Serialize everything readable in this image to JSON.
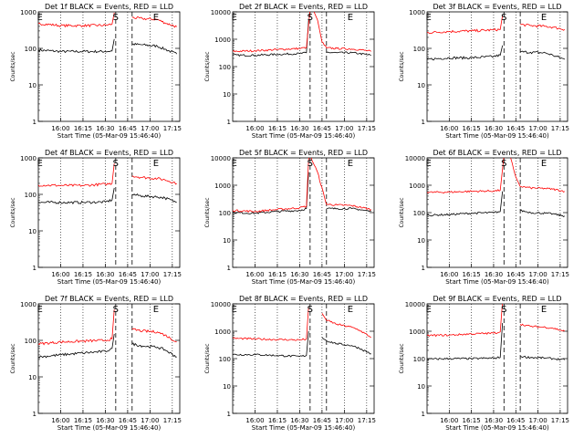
{
  "figure": {
    "start_time_label": "Start Time (05-Mar-09 15:46:40)",
    "ylabel": "Counts/sec",
    "x_ticks": [
      "16:00",
      "16:15",
      "16:30",
      "16:45",
      "17:00",
      "17:15"
    ],
    "x_tick_minutes": [
      -75,
      -60,
      -45,
      -30,
      -15,
      0
    ],
    "markers": [
      {
        "label": "E",
        "x": -89
      },
      {
        "label": "S",
        "x": -38
      },
      {
        "label": "E",
        "x": -11
      }
    ],
    "dashed_lines": [
      -38,
      -27
    ],
    "colors": {
      "events": "#000000",
      "lld": "#ff0000",
      "axes": "#000000"
    }
  },
  "chart_data": [
    {
      "type": "line",
      "title": "Det 1f BLACK = Events, RED = LLD",
      "y_scale": "log",
      "ylim": [
        1,
        1000
      ],
      "y_ticks": [
        "1",
        "10",
        "100",
        "1000"
      ],
      "xlim": [
        -90,
        5
      ],
      "series": [
        {
          "name": "Events",
          "color": "#000000",
          "x": [
            -90,
            -75,
            -60,
            -45,
            -40.5,
            -39,
            -38,
            -27,
            -20,
            -10,
            -5,
            3
          ],
          "y": [
            90,
            82,
            82,
            82,
            85,
            180,
            null,
            130,
            125,
            115,
            95,
            70
          ]
        },
        {
          "name": "LLD",
          "color": "#ff0000",
          "x": [
            -90,
            -75,
            -60,
            -45,
            -40.5,
            -39,
            -38,
            -27,
            -20,
            -10,
            -5,
            3
          ],
          "y": [
            480,
            420,
            420,
            430,
            460,
            950,
            null,
            700,
            650,
            620,
            500,
            390
          ]
        }
      ]
    },
    {
      "type": "line",
      "title": "Det 2f BLACK = Events, RED = LLD",
      "y_scale": "log",
      "ylim": [
        1,
        10000
      ],
      "y_ticks": [
        "1",
        "10",
        "100",
        "1000",
        "10000"
      ],
      "xlim": [
        -90,
        5
      ],
      "series": [
        {
          "name": "Events",
          "color": "#000000",
          "x": [
            -90,
            -75,
            -60,
            -45,
            -40.5,
            -39,
            -38,
            -27,
            -20,
            -10,
            -5,
            3
          ],
          "y": [
            260,
            260,
            280,
            300,
            320,
            5000,
            null,
            330,
            320,
            320,
            300,
            260
          ]
        },
        {
          "name": "LLD",
          "color": "#ff0000",
          "x": [
            -90,
            -75,
            -60,
            -45,
            -40.5,
            -38,
            -36,
            -33,
            -30,
            -27,
            -20,
            -10,
            -5,
            3
          ],
          "y": [
            360,
            380,
            420,
            460,
            500,
            12000,
            12000,
            5000,
            800,
            480,
            460,
            440,
            420,
            360
          ]
        }
      ]
    },
    {
      "type": "line",
      "title": "Det 3f BLACK = Events, RED = LLD",
      "y_scale": "log",
      "ylim": [
        1,
        1000
      ],
      "y_ticks": [
        "1",
        "10",
        "100",
        "1000"
      ],
      "xlim": [
        -90,
        5
      ],
      "series": [
        {
          "name": "Events",
          "color": "#000000",
          "x": [
            -90,
            -75,
            -60,
            -45,
            -40.5,
            -39,
            -38,
            -27,
            -20,
            -10,
            -5,
            3
          ],
          "y": [
            50,
            55,
            55,
            60,
            65,
            120,
            null,
            80,
            78,
            75,
            65,
            50
          ]
        },
        {
          "name": "LLD",
          "color": "#ff0000",
          "x": [
            -90,
            -75,
            -60,
            -45,
            -40.5,
            -39,
            -38,
            -27,
            -20,
            -10,
            -5,
            3
          ],
          "y": [
            270,
            290,
            300,
            320,
            330,
            800,
            null,
            450,
            420,
            400,
            380,
            330
          ]
        }
      ]
    },
    {
      "type": "line",
      "title": "Det 4f BLACK = Events, RED = LLD",
      "y_scale": "log",
      "ylim": [
        1,
        1000
      ],
      "y_ticks": [
        "1",
        "10",
        "100",
        "1000"
      ],
      "xlim": [
        -90,
        5
      ],
      "series": [
        {
          "name": "Events",
          "color": "#000000",
          "x": [
            -90,
            -75,
            -60,
            -45,
            -40.5,
            -39,
            -38,
            -27,
            -20,
            -10,
            -5,
            3
          ],
          "y": [
            60,
            60,
            60,
            62,
            70,
            150,
            null,
            100,
            90,
            85,
            80,
            60
          ]
        },
        {
          "name": "LLD",
          "color": "#ff0000",
          "x": [
            -90,
            -75,
            -60,
            -45,
            -40.5,
            -39,
            -38,
            -27,
            -20,
            -10,
            -5,
            3
          ],
          "y": [
            180,
            175,
            175,
            190,
            200,
            700,
            null,
            320,
            290,
            270,
            250,
            200
          ]
        }
      ]
    },
    {
      "type": "line",
      "title": "Det 5f BLACK = Events, RED = LLD",
      "y_scale": "log",
      "ylim": [
        1,
        10000
      ],
      "y_ticks": [
        "1",
        "10",
        "100",
        "1000",
        "10000"
      ],
      "xlim": [
        -90,
        5
      ],
      "series": [
        {
          "name": "Events",
          "color": "#000000",
          "x": [
            -90,
            -75,
            -60,
            -45,
            -40.5,
            -39,
            -38,
            -27,
            -20,
            -10,
            -5,
            3
          ],
          "y": [
            100,
            95,
            110,
            120,
            140,
            3000,
            null,
            140,
            140,
            140,
            130,
            110
          ]
        },
        {
          "name": "LLD",
          "color": "#ff0000",
          "x": [
            -90,
            -75,
            -60,
            -45,
            -40.5,
            -39,
            -38,
            -33,
            -27,
            -20,
            -10,
            -5,
            3
          ],
          "y": [
            120,
            110,
            130,
            150,
            170,
            9000,
            12000,
            3000,
            200,
            190,
            180,
            160,
            130
          ]
        }
      ]
    },
    {
      "type": "line",
      "title": "Det 6f BLACK = Events, RED = LLD",
      "y_scale": "log",
      "ylim": [
        1,
        10000
      ],
      "y_ticks": [
        "1",
        "10",
        "100",
        "1000",
        "10000"
      ],
      "xlim": [
        -90,
        5
      ],
      "series": [
        {
          "name": "Events",
          "color": "#000000",
          "x": [
            -90,
            -75,
            -60,
            -45,
            -40.5,
            -39,
            -38,
            -27,
            -20,
            -10,
            -5,
            3
          ],
          "y": [
            80,
            85,
            95,
            100,
            110,
            600,
            null,
            120,
            100,
            95,
            90,
            75
          ]
        },
        {
          "name": "LLD",
          "color": "#ff0000",
          "x": [
            -90,
            -75,
            -60,
            -45,
            -40.5,
            -38,
            -34,
            -30,
            -27,
            -20,
            -10,
            -5,
            3
          ],
          "y": [
            550,
            560,
            600,
            620,
            650,
            12000,
            12000,
            2000,
            900,
            800,
            760,
            720,
            600
          ]
        }
      ]
    },
    {
      "type": "line",
      "title": "Det 7f BLACK = Events, RED = LLD",
      "y_scale": "log",
      "ylim": [
        1,
        1000
      ],
      "y_ticks": [
        "1",
        "10",
        "100",
        "1000"
      ],
      "xlim": [
        -90,
        5
      ],
      "series": [
        {
          "name": "Events",
          "color": "#000000",
          "x": [
            -90,
            -75,
            -60,
            -45,
            -40.5,
            -39,
            -38,
            -27,
            -20,
            -10,
            -5,
            3
          ],
          "y": [
            35,
            40,
            45,
            50,
            60,
            150,
            null,
            80,
            70,
            65,
            55,
            35
          ]
        },
        {
          "name": "LLD",
          "color": "#ff0000",
          "x": [
            -90,
            -75,
            -60,
            -45,
            -40.5,
            -39,
            -38,
            -27,
            -20,
            -10,
            -5,
            3
          ],
          "y": [
            80,
            90,
            95,
            100,
            110,
            700,
            null,
            200,
            180,
            170,
            140,
            90
          ]
        }
      ]
    },
    {
      "type": "line",
      "title": "Det 8f BLACK = Events, RED = LLD",
      "y_scale": "log",
      "ylim": [
        1,
        10000
      ],
      "y_ticks": [
        "1",
        "10",
        "100",
        "1000",
        "10000"
      ],
      "xlim": [
        -90,
        5
      ],
      "series": [
        {
          "name": "Events",
          "color": "#000000",
          "x": [
            -90,
            -75,
            -60,
            -45,
            -40.5,
            -39,
            -38,
            -30,
            -27,
            -20,
            -10,
            -5,
            3
          ],
          "y": [
            140,
            140,
            130,
            120,
            130,
            1000,
            null,
            600,
            450,
            350,
            300,
            240,
            150
          ]
        },
        {
          "name": "LLD",
          "color": "#ff0000",
          "x": [
            -90,
            -75,
            -60,
            -45,
            -40.5,
            -39,
            -38,
            -30,
            -27,
            -20,
            -10,
            -5,
            3
          ],
          "y": [
            550,
            520,
            500,
            480,
            520,
            8000,
            null,
            4500,
            2500,
            1800,
            1400,
            1100,
            600
          ]
        }
      ]
    },
    {
      "type": "line",
      "title": "Det 9f BLACK = Events, RED = LLD",
      "y_scale": "log",
      "ylim": [
        1,
        10000
      ],
      "y_ticks": [
        "1",
        "10",
        "100",
        "1000",
        "10000"
      ],
      "xlim": [
        -90,
        5
      ],
      "series": [
        {
          "name": "Events",
          "color": "#000000",
          "x": [
            -90,
            -75,
            -60,
            -45,
            -40.5,
            -39,
            -38,
            -27,
            -20,
            -10,
            -5,
            3
          ],
          "y": [
            95,
            100,
            100,
            105,
            110,
            2000,
            null,
            120,
            110,
            105,
            100,
            90
          ]
        },
        {
          "name": "LLD",
          "color": "#ff0000",
          "x": [
            -90,
            -75,
            -60,
            -45,
            -40.5,
            -39,
            -38,
            -27,
            -20,
            -10,
            -5,
            3
          ],
          "y": [
            700,
            720,
            800,
            850,
            950,
            12000,
            null,
            1800,
            1500,
            1400,
            1300,
            1000
          ]
        }
      ]
    }
  ]
}
